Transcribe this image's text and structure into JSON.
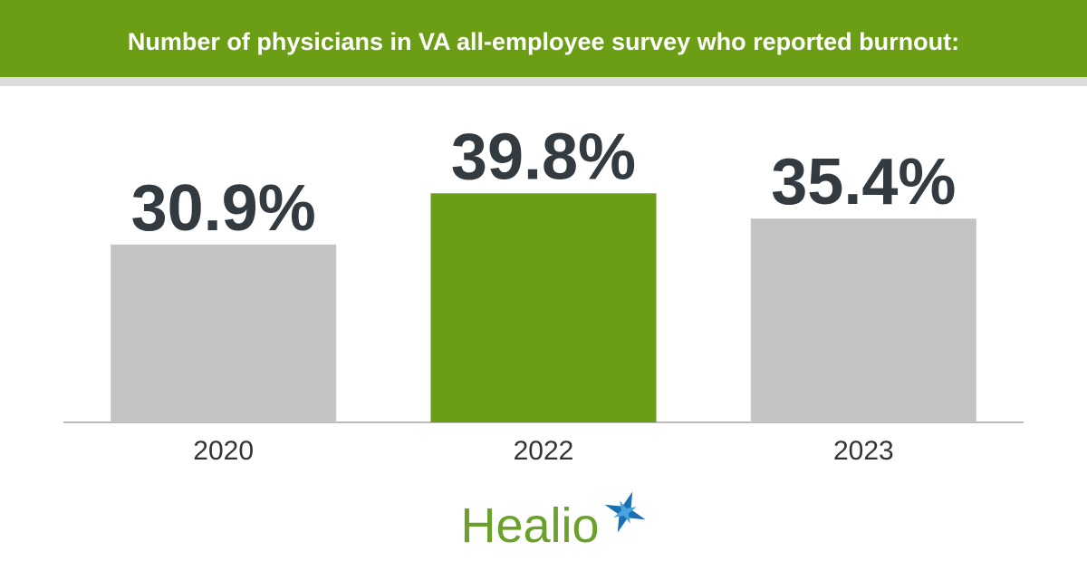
{
  "chart_data": {
    "type": "bar",
    "title": "Number of physicians in VA all-employee survey who reported burnout:",
    "categories": [
      "2020",
      "2022",
      "2023"
    ],
    "values": [
      30.9,
      39.8,
      35.4
    ],
    "value_labels": [
      "30.9%",
      "39.8%",
      "35.4%"
    ],
    "colors": [
      "#c4c4c4",
      "#6b9e14",
      "#c4c4c4"
    ]
  },
  "logo": "Healio"
}
